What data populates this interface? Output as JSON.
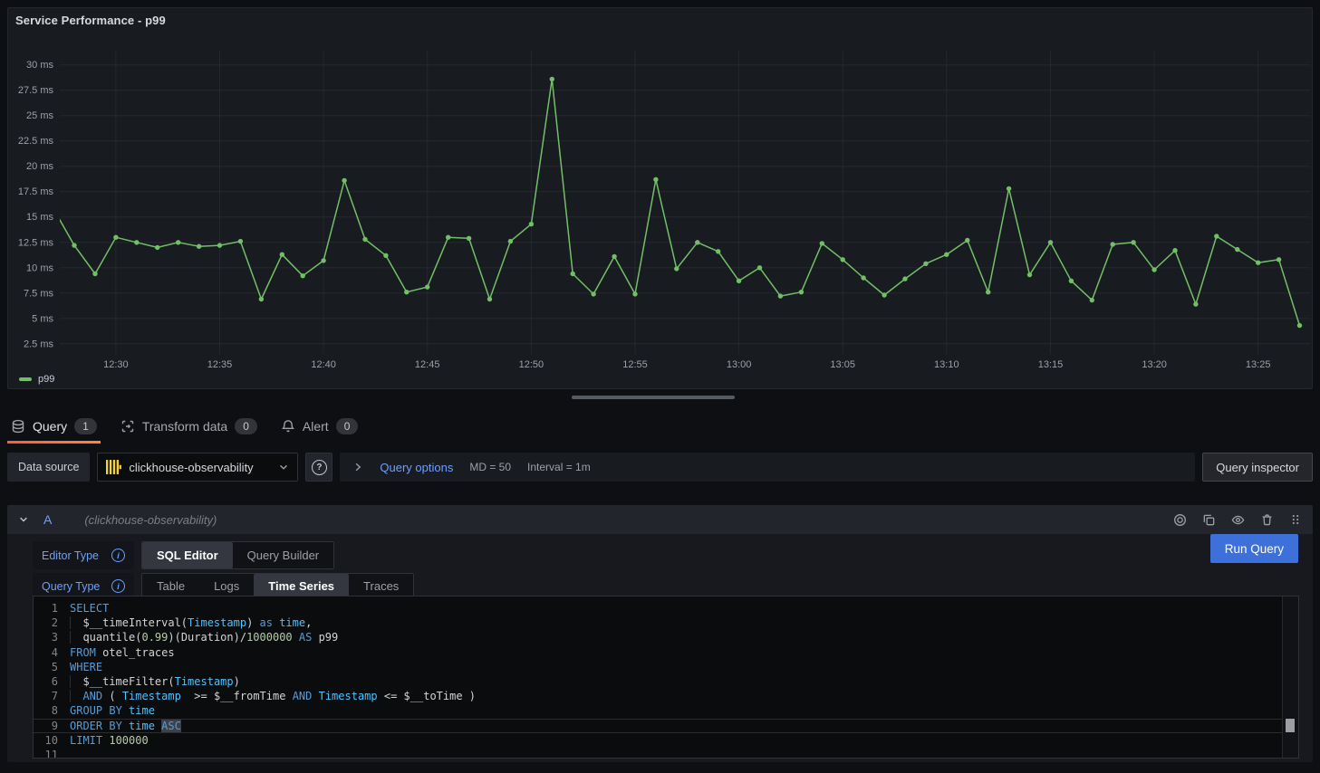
{
  "colors": {
    "series_green": "#73bf69",
    "accent_blue": "#3d71d9",
    "link_blue": "#6e9fff",
    "tab_underline_gradient_from": "#f55f3e",
    "tab_underline_gradient_to": "#ff8833",
    "clickhouse_yellow": "#f6d32d"
  },
  "panel": {
    "title": "Service Performance - p99"
  },
  "chart_data": {
    "type": "line",
    "title": "Service Performance - p99",
    "legend": "p99",
    "unit": "ms",
    "series_color": "#73bf69",
    "grid": true,
    "legend_position": "bottom-left",
    "ylim": [
      1.5,
      31.4
    ],
    "xlim_minutes": [
      747.3,
      807.5
    ],
    "y_ticks": [
      2.5,
      5,
      7.5,
      10,
      12.5,
      15,
      17.5,
      20,
      22.5,
      25,
      27.5,
      30
    ],
    "y_tick_suffix": " ms",
    "x_ticks": [
      "12:30",
      "12:35",
      "12:40",
      "12:45",
      "12:50",
      "12:55",
      "13:00",
      "13:05",
      "13:10",
      "13:15",
      "13:20",
      "13:25"
    ],
    "points": [
      [
        "12:27",
        15.8
      ],
      [
        "12:28",
        12.2
      ],
      [
        "12:29",
        9.4
      ],
      [
        "12:30",
        13.0
      ],
      [
        "12:31",
        12.5
      ],
      [
        "12:32",
        12.0
      ],
      [
        "12:33",
        12.5
      ],
      [
        "12:34",
        12.1
      ],
      [
        "12:35",
        12.2
      ],
      [
        "12:36",
        12.6
      ],
      [
        "12:37",
        6.9
      ],
      [
        "12:38",
        11.3
      ],
      [
        "12:39",
        9.2
      ],
      [
        "12:40",
        10.7
      ],
      [
        "12:41",
        18.6
      ],
      [
        "12:42",
        12.8
      ],
      [
        "12:43",
        11.2
      ],
      [
        "12:44",
        7.6
      ],
      [
        "12:45",
        8.1
      ],
      [
        "12:46",
        13.0
      ],
      [
        "12:47",
        12.9
      ],
      [
        "12:48",
        6.9
      ],
      [
        "12:49",
        12.6
      ],
      [
        "12:50",
        14.3
      ],
      [
        "12:51",
        28.6
      ],
      [
        "12:52",
        9.4
      ],
      [
        "12:53",
        7.4
      ],
      [
        "12:54",
        11.1
      ],
      [
        "12:55",
        7.4
      ],
      [
        "12:56",
        18.7
      ],
      [
        "12:57",
        9.9
      ],
      [
        "12:58",
        12.5
      ],
      [
        "12:59",
        11.6
      ],
      [
        "13:00",
        8.7
      ],
      [
        "13:01",
        10.0
      ],
      [
        "13:02",
        7.2
      ],
      [
        "13:03",
        7.6
      ],
      [
        "13:04",
        12.4
      ],
      [
        "13:05",
        10.8
      ],
      [
        "13:06",
        9.0
      ],
      [
        "13:07",
        7.3
      ],
      [
        "13:08",
        8.9
      ],
      [
        "13:09",
        10.4
      ],
      [
        "13:10",
        11.3
      ],
      [
        "13:11",
        12.7
      ],
      [
        "13:12",
        7.6
      ],
      [
        "13:13",
        17.8
      ],
      [
        "13:14",
        9.3
      ],
      [
        "13:15",
        12.5
      ],
      [
        "13:16",
        8.7
      ],
      [
        "13:17",
        6.8
      ],
      [
        "13:18",
        12.3
      ],
      [
        "13:19",
        12.5
      ],
      [
        "13:20",
        9.8
      ],
      [
        "13:21",
        11.7
      ],
      [
        "13:22",
        6.4
      ],
      [
        "13:23",
        13.1
      ],
      [
        "13:24",
        11.8
      ],
      [
        "13:25",
        10.5
      ],
      [
        "13:26",
        10.8
      ],
      [
        "13:27",
        4.3
      ]
    ]
  },
  "tabs": [
    {
      "label": "Query",
      "badge": "1",
      "active": true
    },
    {
      "label": "Transform data",
      "badge": "0",
      "active": false
    },
    {
      "label": "Alert",
      "badge": "0",
      "active": false
    }
  ],
  "datasource_bar": {
    "label": "Data source",
    "selected": "clickhouse-observability",
    "query_options_label": "Query options",
    "max_data_points": "MD = 50",
    "interval": "Interval = 1m",
    "inspector_label": "Query inspector"
  },
  "query_row": {
    "ref_id": "A",
    "datasource_hint": "(clickhouse-observability)",
    "editor_type": {
      "label": "Editor Type",
      "options": [
        "SQL Editor",
        "Query Builder"
      ],
      "active": 0
    },
    "query_type": {
      "label": "Query Type",
      "options": [
        "Table",
        "Logs",
        "Time Series",
        "Traces"
      ],
      "active": 2
    },
    "run_label": "Run Query",
    "sql": {
      "current_line": 9,
      "total_lines": 11,
      "lines": [
        [
          {
            "t": "SELECT",
            "c": "k"
          }
        ],
        [
          {
            "t": "  ",
            "c": "ig"
          },
          {
            "t": "$__timeInterval(",
            "c": "d"
          },
          {
            "t": "Timestamp",
            "c": "t"
          },
          {
            "t": ") ",
            "c": "d"
          },
          {
            "t": "as",
            "c": "k"
          },
          {
            "t": " ",
            "c": "d"
          },
          {
            "t": "time",
            "c": "t"
          },
          {
            "t": ",",
            "c": "d"
          }
        ],
        [
          {
            "t": "  ",
            "c": "ig"
          },
          {
            "t": "quantile(",
            "c": "d"
          },
          {
            "t": "0.99",
            "c": "n"
          },
          {
            "t": ")(Duration)/",
            "c": "d"
          },
          {
            "t": "1000000",
            "c": "n"
          },
          {
            "t": " ",
            "c": "d"
          },
          {
            "t": "AS",
            "c": "k"
          },
          {
            "t": " p99",
            "c": "d"
          }
        ],
        [
          {
            "t": "FROM",
            "c": "k"
          },
          {
            "t": " otel_traces",
            "c": "d"
          }
        ],
        [
          {
            "t": "WHERE",
            "c": "k"
          }
        ],
        [
          {
            "t": "  ",
            "c": "ig"
          },
          {
            "t": "$__timeFilter(",
            "c": "d"
          },
          {
            "t": "Timestamp",
            "c": "t"
          },
          {
            "t": ")",
            "c": "d"
          }
        ],
        [
          {
            "t": "  ",
            "c": "ig"
          },
          {
            "t": "AND",
            "c": "k"
          },
          {
            "t": " ( ",
            "c": "d"
          },
          {
            "t": "Timestamp",
            "c": "t"
          },
          {
            "t": "  >= ",
            "c": "d"
          },
          {
            "t": "$__fromTime",
            "c": "d"
          },
          {
            "t": " ",
            "c": "d"
          },
          {
            "t": "AND",
            "c": "k"
          },
          {
            "t": " ",
            "c": "d"
          },
          {
            "t": "Timestamp",
            "c": "t"
          },
          {
            "t": " <= ",
            "c": "d"
          },
          {
            "t": "$__toTime",
            "c": "d"
          },
          {
            "t": " )",
            "c": "d"
          }
        ],
        [
          {
            "t": "GROUP BY",
            "c": "k"
          },
          {
            "t": " ",
            "c": "d"
          },
          {
            "t": "time",
            "c": "t"
          }
        ],
        [
          {
            "t": "ORDER BY",
            "c": "k"
          },
          {
            "t": " ",
            "c": "d"
          },
          {
            "t": "time",
            "c": "t"
          },
          {
            "t": " ",
            "c": "d"
          },
          {
            "t": "ASC",
            "c": "ksel"
          }
        ],
        [
          {
            "t": "LIMIT",
            "c": "k"
          },
          {
            "t": " ",
            "c": "d"
          },
          {
            "t": "100000",
            "c": "n"
          }
        ],
        []
      ]
    }
  }
}
